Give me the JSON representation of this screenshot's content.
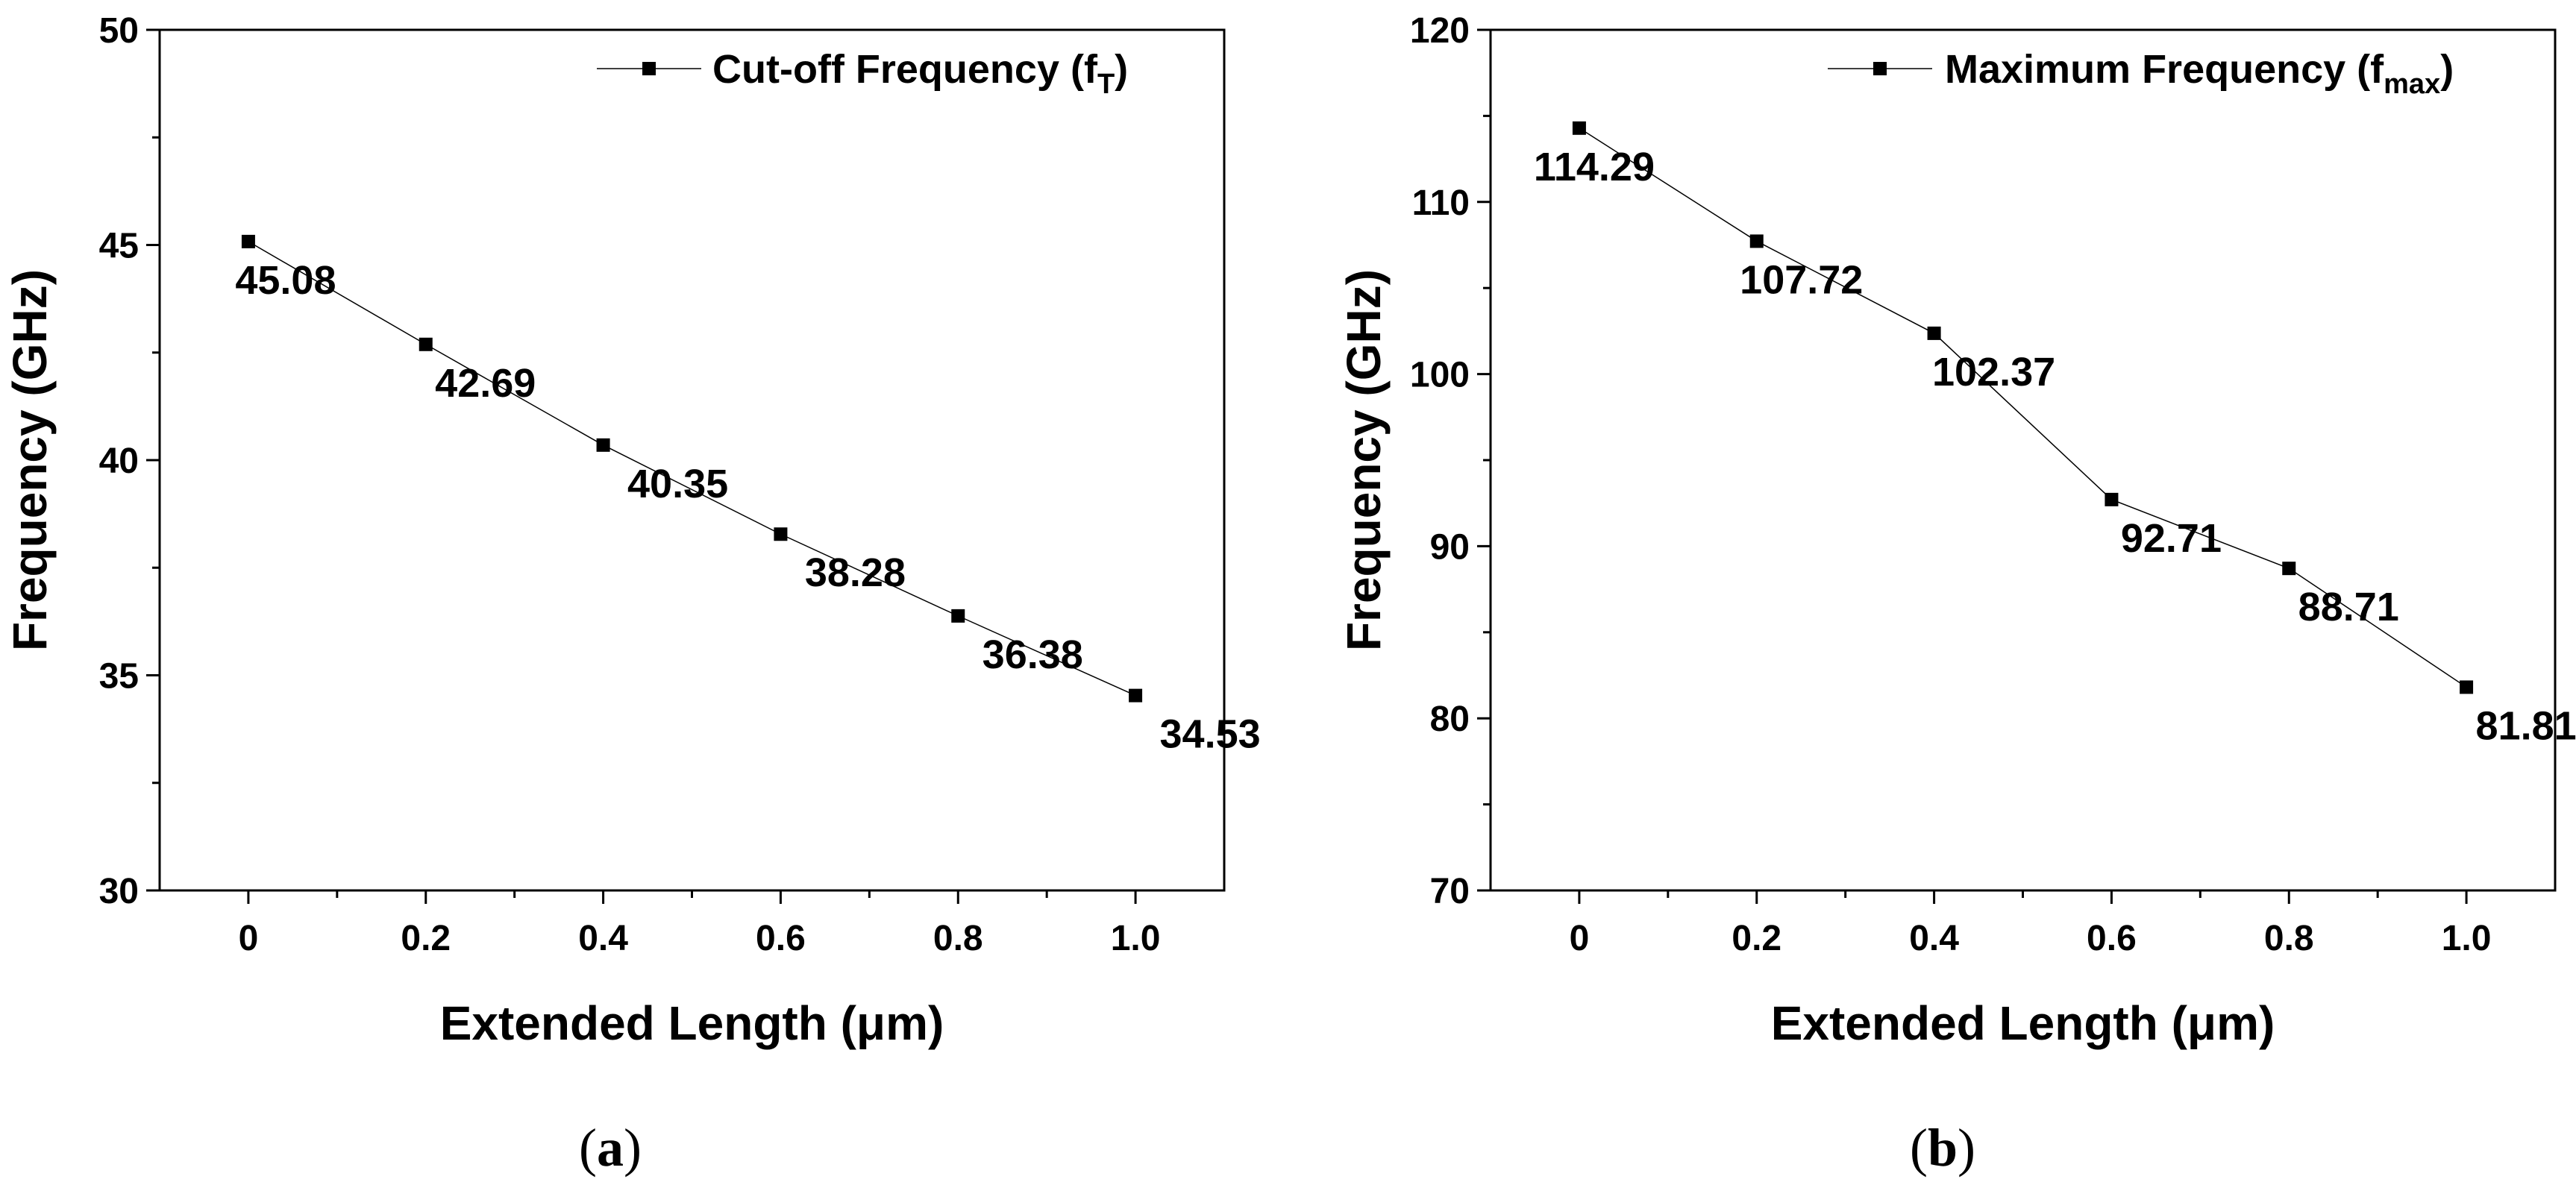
{
  "chart_data": [
    {
      "type": "line",
      "panel_label": "a",
      "xlabel": "Extended Length (μm)",
      "ylabel": "Frequency (GHz)",
      "xlim": [
        -0.1,
        1.1
      ],
      "ylim": [
        30,
        50
      ],
      "x_ticks": [
        0,
        0.2,
        0.4,
        0.6,
        0.8,
        1.0
      ],
      "x_tick_labels": [
        "0",
        "0.2",
        "0.4",
        "0.6",
        "0.8",
        "1.0"
      ],
      "y_ticks": [
        30,
        35,
        40,
        45,
        50
      ],
      "y_tick_labels": [
        "30",
        "35",
        "40",
        "45",
        "50"
      ],
      "y_minor_ticks": [
        32.5,
        37.5,
        42.5,
        47.5
      ],
      "legend": {
        "main": "Cut-off Frequency (f",
        "sub": "T",
        "close": ")",
        "placement": "top-right"
      },
      "series": [
        {
          "name": "Cut-off Frequency (fT)",
          "x": [
            0,
            0.2,
            0.4,
            0.6,
            0.8,
            1.0
          ],
          "values": [
            45.08,
            42.69,
            40.35,
            38.28,
            36.38,
            34.53
          ],
          "labels": [
            "45.08",
            "42.69",
            "40.35",
            "38.28",
            "36.38",
            "34.53"
          ]
        }
      ],
      "caption": {
        "open": "(",
        "letter": "a",
        "close": ")"
      }
    },
    {
      "type": "line",
      "panel_label": "b",
      "xlabel": "Extended Length (μm)",
      "ylabel": "Frequency (GHz)",
      "xlim": [
        -0.1,
        1.1
      ],
      "ylim": [
        70,
        120
      ],
      "x_ticks": [
        0,
        0.2,
        0.4,
        0.6,
        0.8,
        1.0
      ],
      "x_tick_labels": [
        "0",
        "0.2",
        "0.4",
        "0.6",
        "0.8",
        "1.0"
      ],
      "y_ticks": [
        70,
        80,
        90,
        100,
        110,
        120
      ],
      "y_tick_labels": [
        "70",
        "80",
        "90",
        "100",
        "110",
        "120"
      ],
      "y_minor_ticks": [
        75,
        85,
        95,
        105,
        115
      ],
      "legend": {
        "main": "Maximum Frequency (f",
        "sub": "max",
        "close": ")",
        "placement": "top-right"
      },
      "series": [
        {
          "name": "Maximum Frequency (fmax)",
          "x": [
            0,
            0.2,
            0.4,
            0.6,
            0.8,
            1.0
          ],
          "values": [
            114.29,
            107.72,
            102.37,
            92.71,
            88.71,
            81.81
          ],
          "labels": [
            "114.29",
            "107.72",
            "102.37",
            "92.71",
            "88.71",
            "81.81"
          ]
        }
      ],
      "caption": {
        "open": "(",
        "letter": "b",
        "close": ")"
      }
    }
  ]
}
